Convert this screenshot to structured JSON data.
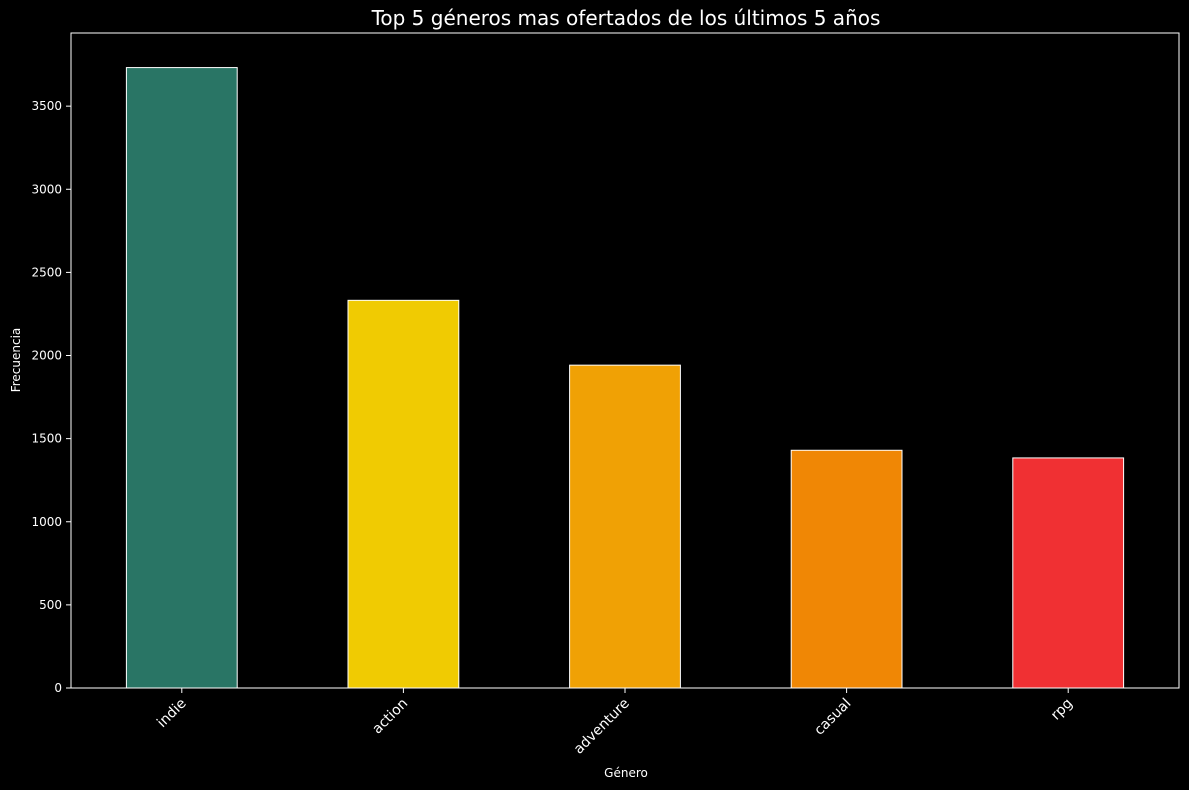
{
  "chart_data": {
    "type": "bar",
    "title": "Top 5 géneros mas ofertados de los últimos 5 años",
    "xlabel": "Género",
    "ylabel": "Frecuencia",
    "categories": [
      "indie",
      "action",
      "adventure",
      "casual",
      "rpg"
    ],
    "values": [
      3732,
      2332,
      1942,
      1430,
      1384
    ],
    "colors": [
      "#297565",
      "#f0cb02",
      "#f0a105",
      "#f08705",
      "#f03033"
    ],
    "ylim": [
      0,
      3940
    ],
    "yticks": [
      0,
      500,
      1000,
      1500,
      2000,
      2500,
      3000,
      3500
    ],
    "grid": false,
    "background": "#000000",
    "text_color": "#ffffff",
    "edge_color": "#ffffff"
  }
}
